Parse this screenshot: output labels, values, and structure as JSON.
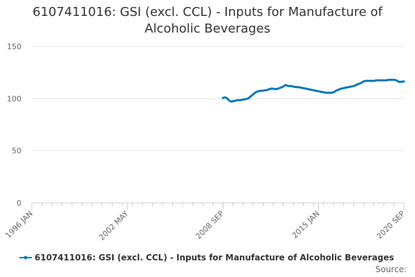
{
  "chart_data": {
    "type": "line",
    "title": "6107411016: GSI (excl. CCL) - Inputs for Manufacture of Alcoholic Beverages",
    "title_lines": [
      "6107411016: GSI (excl. CCL) - Inputs for Manufacture of",
      "Alcoholic Beverages"
    ],
    "xlabel": "",
    "ylabel": "",
    "x_tick_labels": [
      "1996 JAN",
      "2002 MAY",
      "2008 SEP",
      "2015 JAN",
      "2020 SEP"
    ],
    "x_tick_positions": [
      0,
      76,
      152,
      228,
      296
    ],
    "xlim": [
      0,
      296
    ],
    "y_ticks": [
      0,
      50,
      100,
      150
    ],
    "ylim": [
      0,
      150
    ],
    "grid": true,
    "legend_position": "bottom",
    "series": [
      {
        "name": "6107411016: GSI (excl. CCL) - Inputs for Manufacture of Alcoholic Beverages",
        "color": "#0077b6",
        "x": [
          152,
          153,
          154,
          155,
          156,
          157,
          158,
          159,
          160,
          162,
          164,
          166,
          168,
          170,
          172,
          174,
          176,
          178,
          180,
          182,
          184,
          186,
          188,
          190,
          192,
          194,
          196,
          198,
          200,
          202,
          204,
          206,
          208,
          210,
          212,
          214,
          216,
          218,
          220,
          222,
          224,
          226,
          228,
          230,
          232,
          234,
          236,
          238,
          240,
          242,
          244,
          246,
          248,
          250,
          252,
          254,
          256,
          258,
          260,
          262,
          264,
          266,
          268,
          270,
          272,
          274,
          276,
          278,
          280,
          282,
          284,
          286,
          288,
          290,
          292,
          294,
          296
        ],
        "values": [
          100.5,
          101,
          101,
          100.5,
          99.5,
          98,
          97.5,
          97,
          97.5,
          98,
          98.5,
          98.5,
          99,
          99.5,
          100,
          102,
          104,
          106,
          107,
          107.5,
          107.5,
          108,
          108.5,
          109.5,
          109.5,
          109,
          109.5,
          110.5,
          111.5,
          113,
          112,
          112,
          111.5,
          111,
          111,
          110.5,
          110,
          109.5,
          109,
          108.5,
          108,
          107.5,
          107,
          106.5,
          106,
          105.5,
          105.5,
          105.5,
          106,
          107.5,
          108.5,
          109.5,
          110,
          110.5,
          111,
          111.5,
          112,
          113,
          114,
          115,
          116.5,
          117,
          117,
          117,
          117,
          117.5,
          117.5,
          117.5,
          117.5,
          117.5,
          118,
          118,
          118,
          117.5,
          116,
          116,
          116.5
        ]
      }
    ]
  },
  "legend": {
    "label": "6107411016: GSI (excl. CCL) - Inputs for Manufacture of Alcoholic Beverages"
  },
  "footer": {
    "source_label": "Source:"
  }
}
